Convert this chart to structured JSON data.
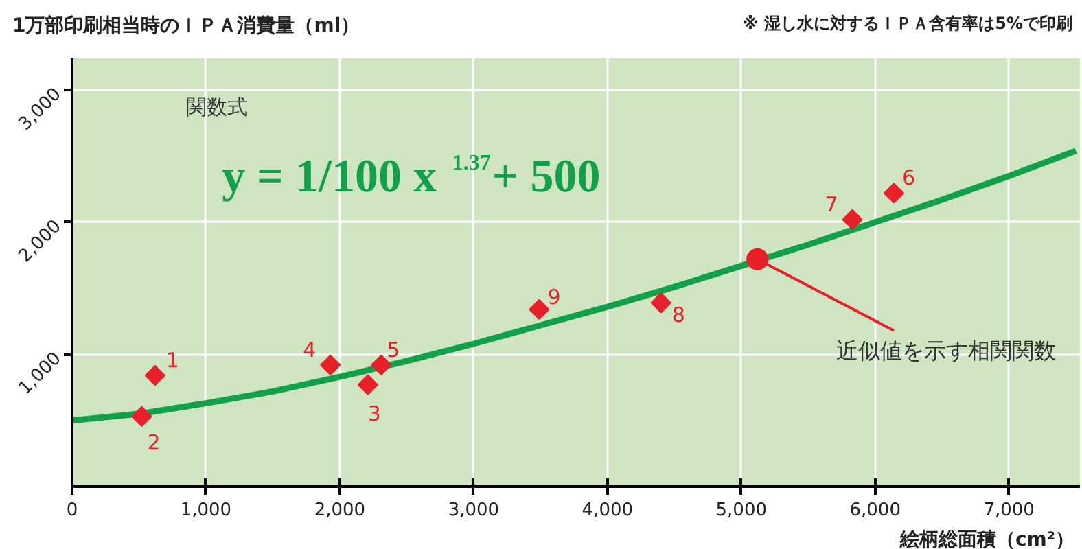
{
  "chart_data": {
    "type": "scatter",
    "title": "1万部印刷相当時のＩＰＡ消費量（ml）",
    "subtitle": "※ 湿し水に対するＩＰＡ含有率は5%で印刷",
    "xlabel": "絵柄総面積（cm²）",
    "xlim": [
      0,
      7530
    ],
    "ylim": [
      0,
      3240
    ],
    "xticks": [
      0,
      {
        "value": 1000,
        "label": "1,000"
      },
      {
        "value": 2000,
        "label": "2,000"
      },
      {
        "value": 3000,
        "label": "3,000"
      },
      {
        "value": 4000,
        "label": "4,000"
      },
      {
        "value": 5000,
        "label": "5,000"
      },
      {
        "value": 6000,
        "label": "6,000"
      },
      {
        "value": 7000,
        "label": "7,000"
      }
    ],
    "yticks": [
      {
        "value": 1000,
        "label": "1,000"
      },
      {
        "value": 2000,
        "label": "2,000"
      },
      {
        "value": 3000,
        "label": "3,000"
      }
    ],
    "grid": true,
    "series": [
      {
        "type": "line",
        "color": "#13a04a",
        "x": [
          0,
          500,
          1000,
          1500,
          2000,
          2500,
          3000,
          3500,
          4000,
          4500,
          5000,
          5500,
          6000,
          6500,
          7000,
          7500
        ],
        "values": [
          500,
          550,
          630,
          720,
          830,
          950,
          1080,
          1220,
          1360,
          1510,
          1670,
          1830,
          2000,
          2170,
          2350,
          2540
        ]
      },
      {
        "marker": "diamond",
        "color": "#e8202a",
        "x": [
          620,
          520,
          2210,
          1930,
          2310,
          6140,
          5830,
          4400,
          3490
        ],
        "values": [
          840,
          530,
          770,
          920,
          920,
          2220,
          2020,
          1390,
          1340
        ]
      },
      {
        "marker": "circle",
        "color": "#e8202a",
        "x": [
          5120
        ],
        "values": [
          1720
        ]
      }
    ],
    "annotations": [
      {
        "text": "1",
        "x": 620,
        "y": 840
      },
      {
        "text": "2",
        "x": 520,
        "y": 530
      },
      {
        "text": "3",
        "x": 2210,
        "y": 770
      },
      {
        "text": "4",
        "x": 1930,
        "y": 920
      },
      {
        "text": "5",
        "x": 2310,
        "y": 920
      },
      {
        "text": "6",
        "x": 6140,
        "y": 2220
      },
      {
        "text": "7",
        "x": 5830,
        "y": 2020
      },
      {
        "text": "8",
        "x": 4400,
        "y": 1390
      },
      {
        "text": "9",
        "x": 3490,
        "y": 1340
      },
      {
        "text": "近似値を示す相関関数",
        "x": 5120,
        "y": 1720
      },
      "関数式",
      "y = 1/100 x$^{1.37}$+ 500"
    ]
  }
}
